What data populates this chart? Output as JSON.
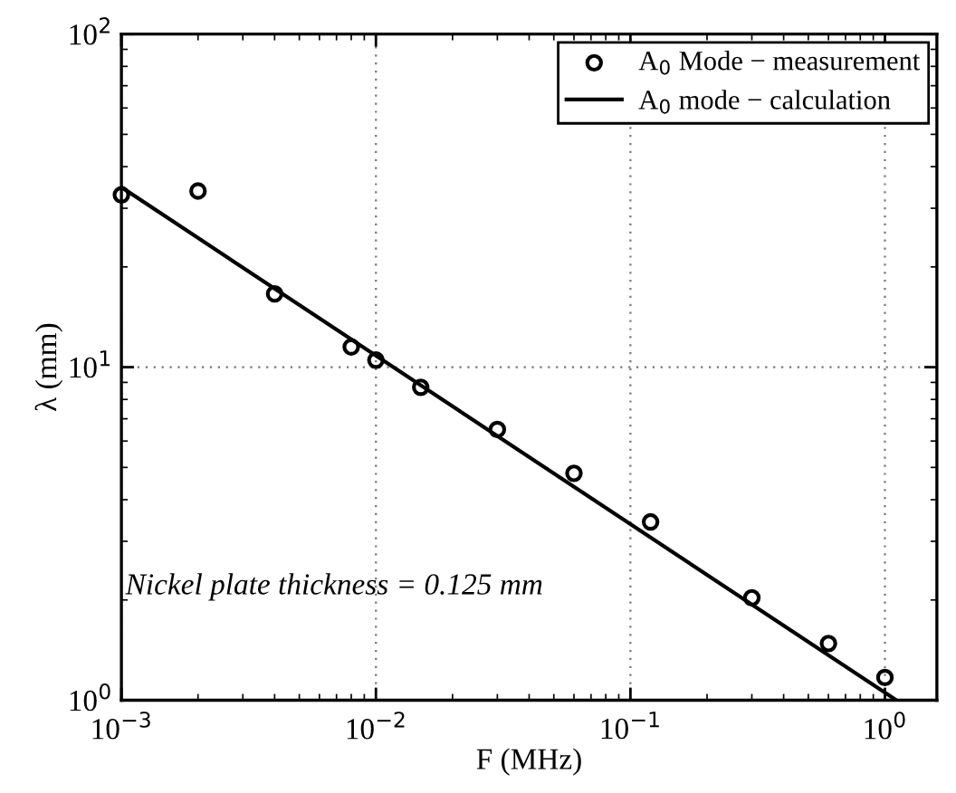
{
  "chart_data": {
    "type": "scatter",
    "xlabel": "F (MHz)",
    "ylabel": "λ (mm)",
    "log": "xy",
    "grid": true,
    "legend": "top right",
    "xlim": [
      0.001,
      1.6
    ],
    "ylim": [
      1,
      100
    ],
    "xticks": [
      {
        "value": 0.001,
        "label": "10$^{−3}$"
      },
      {
        "value": 0.01,
        "label": "10$^{−2}$"
      },
      {
        "value": 0.1,
        "label": "10$^{−1}$"
      },
      {
        "value": 1,
        "label": "10$^{0}$"
      }
    ],
    "yticks": [
      {
        "value": 1,
        "label": "10$^{0}$"
      },
      {
        "value": 10,
        "label": "10$^{1}$"
      },
      {
        "value": 100,
        "label": "10$^{2}$"
      }
    ],
    "series": [
      {
        "name": "A$_{0}$ Mode − measurement",
        "color": "#000000",
        "marker": "circle",
        "x": [
          0.001,
          0.002,
          0.004,
          0.008,
          0.01,
          0.015,
          0.03,
          0.06,
          0.12,
          0.3,
          0.6,
          1.0
        ],
        "values": [
          32.9,
          33.8,
          16.6,
          11.5,
          10.5,
          8.7,
          6.5,
          4.8,
          3.43,
          2.03,
          1.48,
          1.17
        ]
      },
      {
        "name": "A$_{0}$ mode − calculation",
        "type": "line",
        "color": "#000000",
        "marker": "none",
        "line_style": "solid",
        "x": [
          0.001,
          1.11
        ],
        "values": [
          34.7,
          1.0
        ]
      }
    ],
    "annotations": [
      "Nickel plate thickness = 0.125 mm"
    ]
  }
}
